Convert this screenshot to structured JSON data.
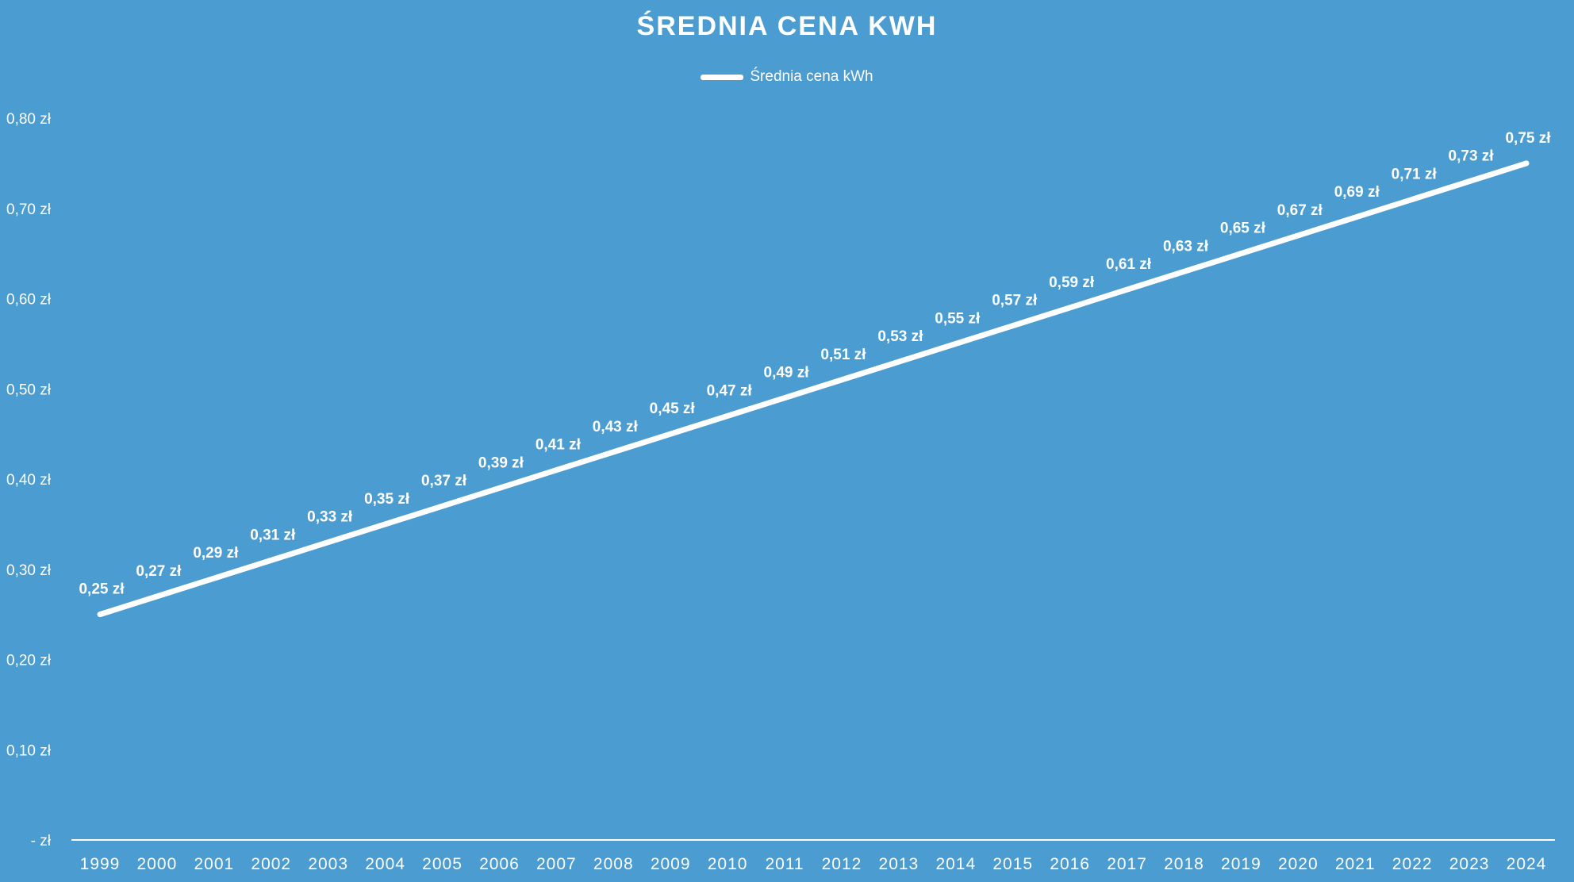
{
  "chart_data": {
    "type": "line",
    "title": "ŚREDNIA CENA KWH",
    "legend": {
      "position": "top",
      "entries": [
        "Średnia cena kWh"
      ]
    },
    "categories": [
      "1999",
      "2000",
      "2001",
      "2002",
      "2003",
      "2004",
      "2005",
      "2006",
      "2007",
      "2008",
      "2009",
      "2010",
      "2011",
      "2012",
      "2013",
      "2014",
      "2015",
      "2016",
      "2017",
      "2018",
      "2019",
      "2020",
      "2021",
      "2022",
      "2023",
      "2024"
    ],
    "series": [
      {
        "name": "Średnia cena kWh",
        "values": [
          0.25,
          0.27,
          0.29,
          0.31,
          0.33,
          0.35,
          0.37,
          0.39,
          0.41,
          0.43,
          0.45,
          0.47,
          0.49,
          0.51,
          0.53,
          0.55,
          0.57,
          0.59,
          0.61,
          0.63,
          0.65,
          0.67,
          0.69,
          0.71,
          0.73,
          0.75
        ]
      }
    ],
    "data_labels": [
      "0,25 zł",
      "0,27 zł",
      "0,29 zł",
      "0,31 zł",
      "0,33 zł",
      "0,35 zł",
      "0,37 zł",
      "0,39 zł",
      "0,41 zł",
      "0,43 zł",
      "0,45 zł",
      "0,47 zł",
      "0,49 zł",
      "0,51 zł",
      "0,53 zł",
      "0,55 zł",
      "0,57 zł",
      "0,59 zł",
      "0,61 zł",
      "0,63 zł",
      "0,65 zł",
      "0,67 zł",
      "0,69 zł",
      "0,71 zł",
      "0,73 zł",
      "0,75 zł"
    ],
    "y_ticks": [
      0,
      0.1,
      0.2,
      0.3,
      0.4,
      0.5,
      0.6,
      0.7,
      0.8
    ],
    "y_tick_labels": [
      "-  zł",
      "0,10 zł",
      "0,20 zł",
      "0,30 zł",
      "0,40 zł",
      "0,50 zł",
      "0,60 zł",
      "0,70 zł",
      "0,80 zł"
    ],
    "ylim": [
      0,
      0.8
    ],
    "xlabel": "",
    "ylabel": "",
    "grid": false,
    "drop_lines": true,
    "colors": {
      "background": "#4a9cd1",
      "line": "#ffffff"
    }
  }
}
